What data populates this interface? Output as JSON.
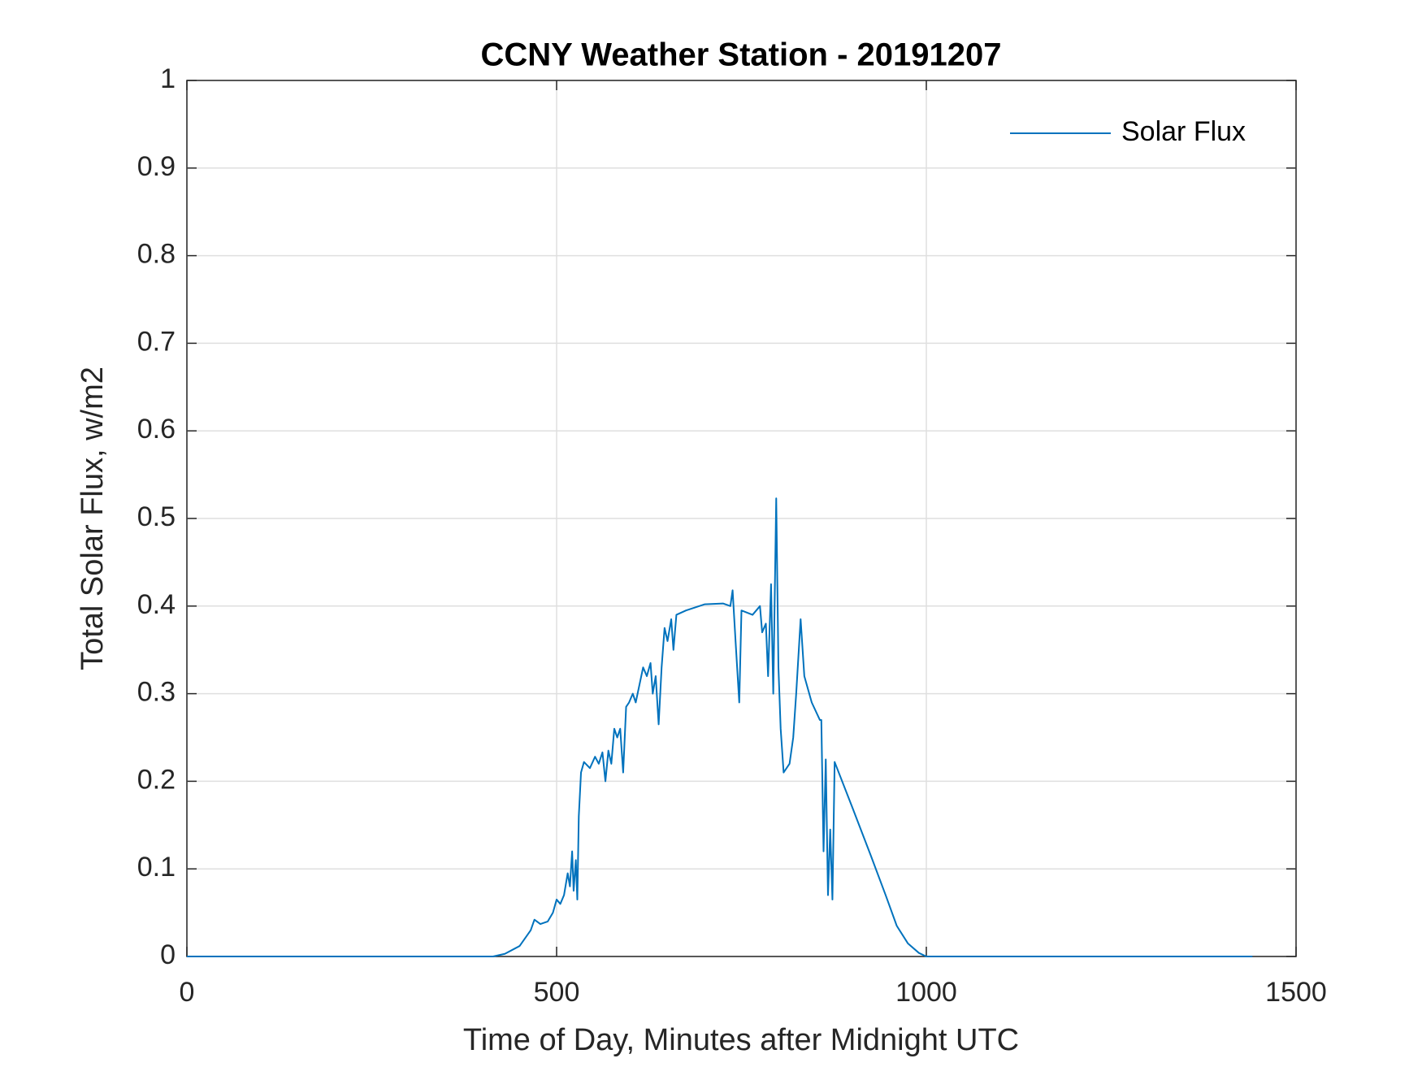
{
  "chart_data": {
    "type": "line",
    "title": "CCNY Weather Station - 20191207",
    "x_label": "Time of Day, Minutes after Midnight UTC",
    "y_label": "Total Solar Flux, w/m2",
    "xlim": [
      0,
      1500
    ],
    "ylim": [
      0,
      1
    ],
    "xticks": [
      0,
      500,
      1000,
      1500
    ],
    "yticks": [
      0,
      0.1,
      0.2,
      0.3,
      0.4,
      0.5,
      0.6,
      0.7,
      0.8,
      0.9,
      1
    ],
    "grid": true,
    "legend": "northeast",
    "series": [
      {
        "name": "Solar Flux",
        "color": "#0072bd",
        "x": [
          0,
          414,
          430,
          450,
          465,
          470,
          478,
          488,
          495,
          500,
          505,
          510,
          515,
          518,
          521,
          523,
          526,
          528,
          530,
          533,
          537,
          545,
          552,
          557,
          562,
          566,
          570,
          574,
          578,
          582,
          586,
          590,
          594,
          598,
          603,
          607,
          612,
          617,
          622,
          627,
          630,
          634,
          638,
          642,
          646,
          650,
          655,
          658,
          662,
          675,
          700,
          725,
          735,
          738,
          742,
          747,
          750,
          765,
          775,
          778,
          783,
          786,
          790,
          793,
          797,
          800,
          803,
          807,
          815,
          820,
          824,
          830,
          835,
          845,
          856,
          858,
          861,
          864,
          867,
          870,
          873,
          876,
          900,
          925,
          945,
          960,
          975,
          990,
          1000,
          1441
        ],
        "values": [
          0,
          0,
          0.003,
          0.012,
          0.03,
          0.042,
          0.037,
          0.04,
          0.05,
          0.065,
          0.06,
          0.07,
          0.095,
          0.08,
          0.12,
          0.075,
          0.11,
          0.065,
          0.16,
          0.21,
          0.222,
          0.215,
          0.228,
          0.22,
          0.233,
          0.2,
          0.235,
          0.22,
          0.26,
          0.25,
          0.26,
          0.21,
          0.285,
          0.29,
          0.3,
          0.29,
          0.31,
          0.33,
          0.32,
          0.335,
          0.3,
          0.32,
          0.265,
          0.33,
          0.375,
          0.36,
          0.385,
          0.35,
          0.39,
          0.395,
          0.402,
          0.403,
          0.4,
          0.418,
          0.36,
          0.29,
          0.395,
          0.39,
          0.4,
          0.37,
          0.38,
          0.32,
          0.425,
          0.3,
          0.523,
          0.33,
          0.26,
          0.21,
          0.22,
          0.25,
          0.3,
          0.385,
          0.32,
          0.29,
          0.27,
          0.27,
          0.12,
          0.225,
          0.07,
          0.145,
          0.065,
          0.222,
          0.17,
          0.115,
          0.07,
          0.035,
          0.015,
          0.004,
          0,
          0
        ]
      }
    ]
  }
}
